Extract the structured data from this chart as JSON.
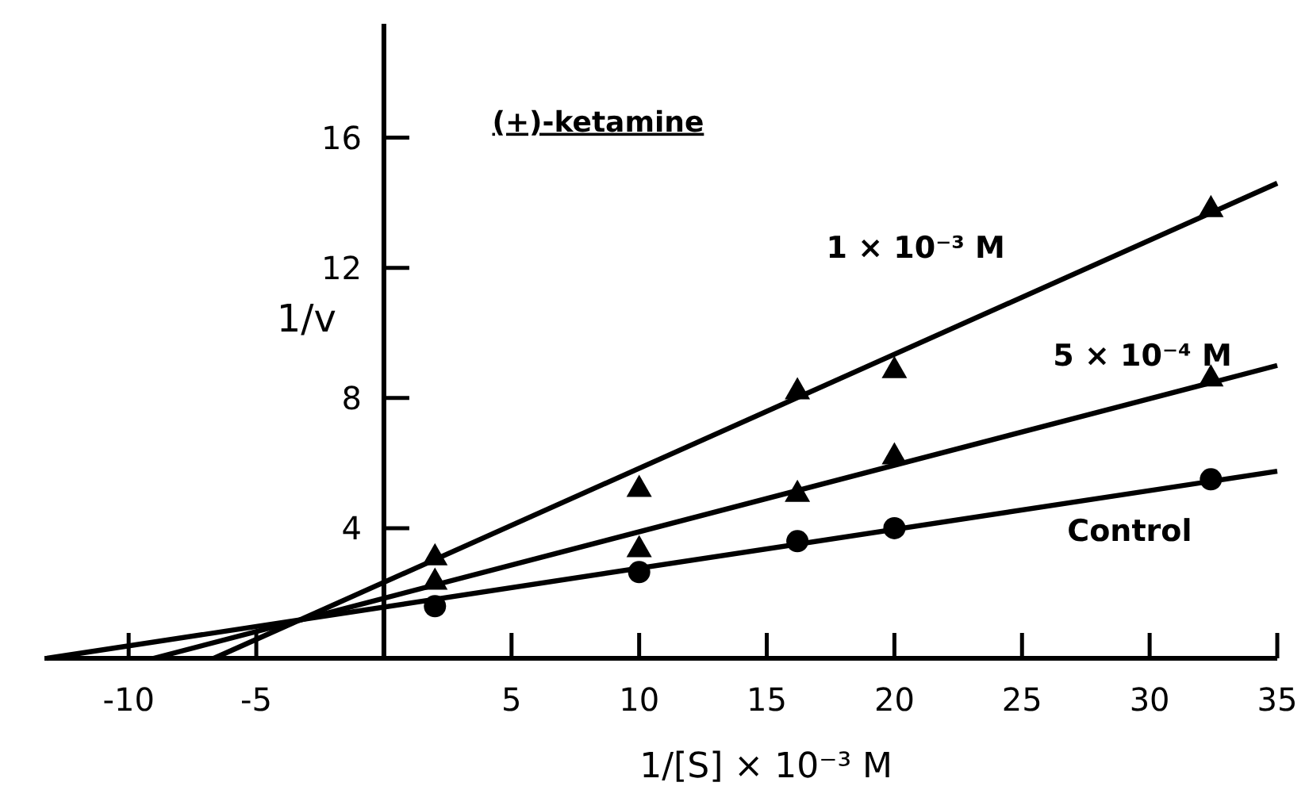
{
  "chart_data": {
    "type": "scatter",
    "title": "(+)-ketamine",
    "xlabel": "1/[S] × 10⁻³ M",
    "ylabel": "1/v",
    "xlim": [
      -13.3,
      35
    ],
    "ylim": [
      0,
      19.5
    ],
    "xticks": [
      -10,
      -5,
      5,
      10,
      15,
      20,
      25,
      30,
      35
    ],
    "yticks": [
      4,
      8,
      12,
      16
    ],
    "grid": false,
    "series": [
      {
        "marker": "circle",
        "color": "#000000",
        "x": [
          2,
          10,
          16.2,
          20,
          32.4
        ],
        "values": [
          1.6,
          2.65,
          3.6,
          4.0,
          5.5
        ]
      },
      {
        "marker": "triangle",
        "color": "#000000",
        "x": [
          2,
          10,
          16.2,
          20,
          32.4
        ],
        "values": [
          2.4,
          3.4,
          5.1,
          6.25,
          8.65
        ]
      },
      {
        "marker": "triangle",
        "color": "#000000",
        "x": [
          2,
          10,
          16.2,
          20,
          32.4
        ],
        "values": [
          3.15,
          5.25,
          8.25,
          8.9,
          13.85
        ]
      },
      {
        "type": "line",
        "name": "Control",
        "marker": "none",
        "line_style": "solid",
        "color": "#000000",
        "x": [
          -13.2,
          35
        ],
        "values": [
          0,
          5.75
        ]
      },
      {
        "type": "line",
        "name": "5 × 10⁻⁴ M",
        "marker": "none",
        "line_style": "solid",
        "color": "#000000",
        "x": [
          -9.02,
          35
        ],
        "values": [
          0,
          9.0
        ]
      },
      {
        "type": "line",
        "name": "1 × 10⁻³ M",
        "marker": "none",
        "line_style": "solid",
        "color": "#000000",
        "x": [
          -6.66,
          35
        ],
        "values": [
          0,
          14.6
        ]
      }
    ]
  }
}
